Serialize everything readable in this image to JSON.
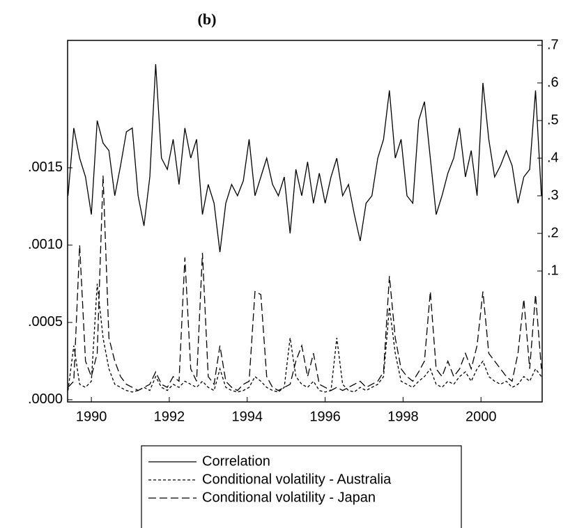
{
  "chart_data": {
    "type": "line",
    "title": "(b)",
    "x": [
      1989.4,
      1989.55,
      1989.7,
      1989.85,
      1990.0,
      1990.15,
      1990.3,
      1990.45,
      1990.6,
      1990.75,
      1990.9,
      1991.05,
      1991.2,
      1991.35,
      1991.5,
      1991.65,
      1991.8,
      1991.95,
      1992.1,
      1992.25,
      1992.4,
      1992.55,
      1992.7,
      1992.85,
      1993.0,
      1993.15,
      1993.3,
      1993.45,
      1993.6,
      1993.75,
      1993.9,
      1994.05,
      1994.2,
      1994.35,
      1994.5,
      1994.65,
      1994.8,
      1994.95,
      1995.1,
      1995.25,
      1995.4,
      1995.55,
      1995.7,
      1995.85,
      1996.0,
      1996.15,
      1996.3,
      1996.45,
      1996.6,
      1996.75,
      1996.9,
      1997.05,
      1997.2,
      1997.35,
      1997.5,
      1997.65,
      1997.8,
      1997.95,
      1998.1,
      1998.25,
      1998.4,
      1998.55,
      1998.7,
      1998.85,
      1999.0,
      1999.15,
      1999.3,
      1999.45,
      1999.6,
      1999.75,
      1999.9,
      2000.05,
      2000.2,
      2000.35,
      2000.5,
      2000.65,
      2000.8,
      2000.95,
      2001.1,
      2001.25,
      2001.4,
      2001.55
    ],
    "series": [
      {
        "name": "Correlation",
        "color": "#000000",
        "line_style": "solid",
        "axis": "y2",
        "values": [
          0.3,
          0.48,
          0.4,
          0.35,
          0.25,
          0.5,
          0.44,
          0.42,
          0.3,
          0.38,
          0.47,
          0.48,
          0.3,
          0.22,
          0.35,
          0.65,
          0.4,
          0.37,
          0.45,
          0.33,
          0.48,
          0.4,
          0.45,
          0.25,
          0.33,
          0.28,
          0.15,
          0.28,
          0.33,
          0.3,
          0.34,
          0.45,
          0.3,
          0.35,
          0.4,
          0.33,
          0.3,
          0.35,
          0.2,
          0.37,
          0.3,
          0.39,
          0.28,
          0.36,
          0.28,
          0.35,
          0.4,
          0.3,
          0.33,
          0.25,
          0.18,
          0.28,
          0.3,
          0.4,
          0.45,
          0.58,
          0.4,
          0.45,
          0.3,
          0.28,
          0.5,
          0.55,
          0.4,
          0.25,
          0.3,
          0.36,
          0.4,
          0.48,
          0.35,
          0.42,
          0.3,
          0.6,
          0.45,
          0.35,
          0.38,
          0.42,
          0.38,
          0.28,
          0.35,
          0.37,
          0.58,
          0.3
        ]
      },
      {
        "name": "Conditional volatility - Australia",
        "color": "#000000",
        "line_style": "dashed",
        "values": [
          6e-05,
          0.00035,
          0.0001,
          8e-05,
          0.00012,
          0.00075,
          0.0004,
          0.0002,
          0.0001,
          8e-05,
          6e-05,
          5e-05,
          6e-05,
          8e-05,
          6e-05,
          0.00015,
          8e-05,
          6e-05,
          0.0001,
          8e-05,
          0.00012,
          0.0001,
          8e-05,
          0.00012,
          8e-05,
          6e-05,
          0.0002,
          8e-05,
          6e-05,
          5e-05,
          6e-05,
          8e-05,
          0.00015,
          0.00012,
          8e-05,
          6e-05,
          5e-05,
          8e-05,
          0.0004,
          0.00015,
          0.0001,
          8e-05,
          0.00012,
          6e-05,
          5e-05,
          6e-05,
          0.0004,
          0.0001,
          6e-05,
          5e-05,
          8e-05,
          6e-05,
          8e-05,
          0.0001,
          0.00015,
          0.0006,
          0.0003,
          0.00012,
          0.0001,
          8e-05,
          0.00012,
          0.00015,
          0.0002,
          0.0001,
          8e-05,
          0.00012,
          0.0001,
          0.00015,
          0.00018,
          0.00012,
          0.0002,
          0.00025,
          0.00015,
          0.00012,
          0.0001,
          0.00012,
          8e-05,
          0.0001,
          0.00015,
          0.00012,
          0.0002,
          0.00015
        ]
      },
      {
        "name": "Conditional volatility - Japan",
        "color": "#000000",
        "line_style": "long-dashed",
        "values": [
          8e-05,
          0.00012,
          0.001,
          0.00025,
          0.00015,
          0.0003,
          0.00145,
          0.0004,
          0.00025,
          0.00015,
          0.0001,
          8e-05,
          6e-05,
          8e-05,
          0.0001,
          0.00018,
          0.0001,
          8e-05,
          0.00015,
          0.00012,
          0.00092,
          0.0002,
          0.00012,
          0.00095,
          0.00015,
          0.0001,
          0.00035,
          0.00012,
          8e-05,
          6e-05,
          0.0001,
          0.00012,
          0.0007,
          0.00068,
          0.00015,
          8e-05,
          6e-05,
          8e-05,
          0.0001,
          0.00025,
          0.00035,
          0.00015,
          0.0003,
          0.0001,
          8e-05,
          6e-05,
          8e-05,
          6e-05,
          8e-05,
          0.0001,
          0.00012,
          8e-05,
          0.0001,
          0.00012,
          0.00018,
          0.0008,
          0.0004,
          0.0002,
          0.00015,
          0.00012,
          0.00018,
          0.00025,
          0.0007,
          0.0002,
          0.00015,
          0.00025,
          0.00015,
          0.0002,
          0.0003,
          0.0002,
          0.00035,
          0.0007,
          0.0003,
          0.00025,
          0.0002,
          0.00015,
          0.00012,
          0.0003,
          0.00065,
          0.0002,
          0.00068,
          0.0002
        ]
      }
    ],
    "xlim": [
      1989.39,
      2001.57
    ],
    "xticks": [
      1990,
      1992,
      1994,
      1996,
      1998,
      2000
    ],
    "ylim": [
      -1.4e-05,
      0.002324
    ],
    "yticks": [
      {
        "value": 0,
        "label": ".0000"
      },
      {
        "value": 0.0005,
        "label": ".0005"
      },
      {
        "value": 0.001,
        "label": ".0010"
      },
      {
        "value": 0.0015,
        "label": ".0015"
      }
    ],
    "y2lim": [
      -0.248,
      0.713
    ],
    "y2ticks": [
      {
        "value": 0.1,
        "label": ".1"
      },
      {
        "value": 0.2,
        "label": ".2"
      },
      {
        "value": 0.3,
        "label": ".3"
      },
      {
        "value": 0.4,
        "label": ".4"
      },
      {
        "value": 0.5,
        "label": ".5"
      },
      {
        "value": 0.6,
        "label": ".6"
      },
      {
        "value": 0.7,
        "label": ".7"
      }
    ],
    "legend": "bottom"
  }
}
